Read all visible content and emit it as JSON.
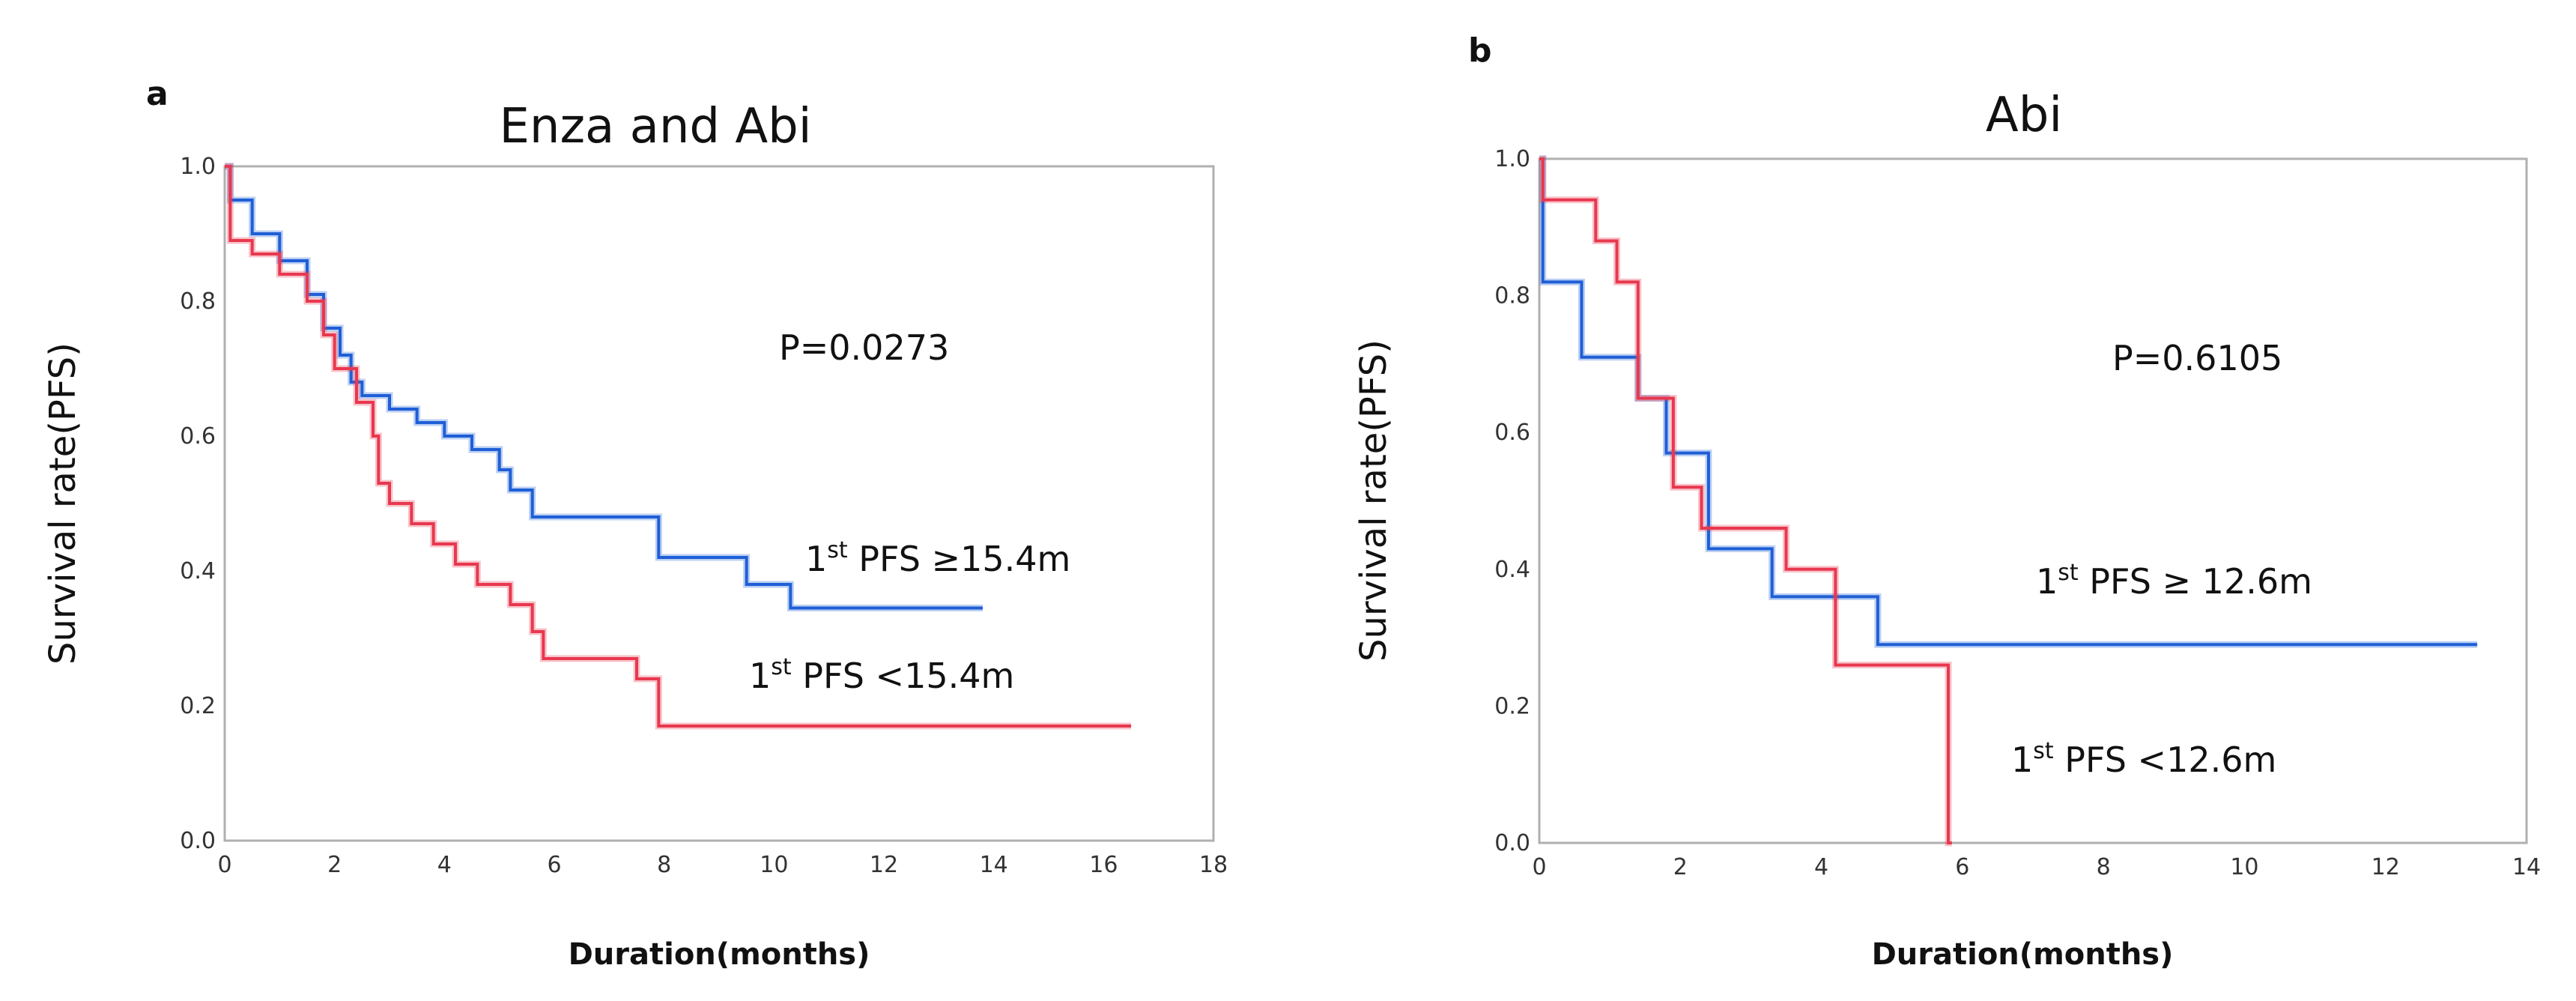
{
  "chart_data": [
    {
      "type": "line",
      "panel_label": "a",
      "title": "Enza and Abi",
      "xlabel": "Duration(months)",
      "ylabel": "Survival rate(PFS)",
      "xlim": [
        0,
        18
      ],
      "ylim": [
        0.0,
        1.0
      ],
      "xticks": [
        0,
        2,
        4,
        6,
        8,
        10,
        12,
        14,
        16,
        18
      ],
      "xtick_labels": [
        "0",
        "2",
        "4",
        "6",
        "8",
        "10",
        "12",
        "14",
        "16",
        "18"
      ],
      "yticks": [
        0.0,
        0.2,
        0.4,
        0.6,
        0.8,
        1.0
      ],
      "ytick_labels": [
        "0.0",
        "0.2",
        "0.4",
        "0.6",
        "0.8",
        "1.0"
      ],
      "p_value": "P=0.0273",
      "series": [
        {
          "name": "1st PFS ≥15.4m",
          "label_sup": "st",
          "label_rest": " PFS ≥15.4m",
          "label_num": "1",
          "color": "#1f5fd6",
          "x": [
            0,
            0.1,
            0.5,
            1.0,
            1.5,
            1.8,
            2.1,
            2.3,
            2.5,
            3.0,
            3.5,
            4.0,
            4.5,
            5.0,
            5.2,
            5.6,
            6.5,
            7.9,
            9.5,
            10.3,
            13.8
          ],
          "y": [
            1.0,
            0.95,
            0.9,
            0.86,
            0.81,
            0.76,
            0.72,
            0.68,
            0.66,
            0.64,
            0.62,
            0.6,
            0.58,
            0.55,
            0.52,
            0.48,
            0.48,
            0.42,
            0.38,
            0.345,
            0.345
          ]
        },
        {
          "name": "1st PFS <15.4m",
          "label_sup": "st",
          "label_rest": " PFS <15.4m",
          "label_num": "1",
          "color": "#e8384f",
          "x": [
            0,
            0.1,
            0.5,
            1.0,
            1.5,
            1.8,
            2.0,
            2.4,
            2.7,
            2.8,
            3.0,
            3.4,
            3.8,
            4.2,
            4.6,
            5.2,
            5.6,
            5.8,
            7.5,
            7.9,
            16.5
          ],
          "y": [
            1.0,
            0.89,
            0.87,
            0.84,
            0.8,
            0.75,
            0.7,
            0.65,
            0.6,
            0.53,
            0.5,
            0.47,
            0.44,
            0.41,
            0.38,
            0.35,
            0.31,
            0.27,
            0.24,
            0.17,
            0.17
          ]
        }
      ]
    },
    {
      "type": "line",
      "panel_label": "b",
      "title": "Abi",
      "xlabel": "Duration(months)",
      "ylabel": "Survival rate(PFS)",
      "xlim": [
        0,
        14
      ],
      "ylim": [
        0.0,
        1.0
      ],
      "xticks": [
        0,
        2,
        4,
        6,
        8,
        10,
        12,
        14
      ],
      "xtick_labels": [
        "0",
        "2",
        "4",
        "6",
        "8",
        "10",
        "12",
        "14"
      ],
      "yticks": [
        0.0,
        0.2,
        0.4,
        0.6,
        0.8,
        1.0
      ],
      "ytick_labels": [
        "0.0",
        "0.2",
        "0.4",
        "0.6",
        "0.8",
        "1.0"
      ],
      "p_value": "P=0.6105",
      "series": [
        {
          "name": "1st PFS ≥ 12.6m",
          "label_sup": "st",
          "label_rest": " PFS ≥ 12.6m",
          "label_num": "1",
          "color": "#1f5fd6",
          "x": [
            0,
            0.05,
            0.6,
            1.4,
            1.8,
            2.4,
            3.3,
            4.8,
            13.3
          ],
          "y": [
            1.0,
            0.82,
            0.71,
            0.65,
            0.57,
            0.43,
            0.36,
            0.29,
            0.29
          ]
        },
        {
          "name": "1st PFS <12.6m",
          "label_sup": "st",
          "label_rest": " PFS <12.6m",
          "label_num": "1",
          "color": "#e8384f",
          "x": [
            0,
            0.05,
            0.8,
            1.1,
            1.4,
            1.9,
            2.3,
            3.5,
            4.2,
            5.8,
            5.85
          ],
          "y": [
            1.0,
            0.94,
            0.88,
            0.82,
            0.65,
            0.52,
            0.46,
            0.4,
            0.26,
            0.0,
            0.0
          ]
        }
      ]
    }
  ]
}
